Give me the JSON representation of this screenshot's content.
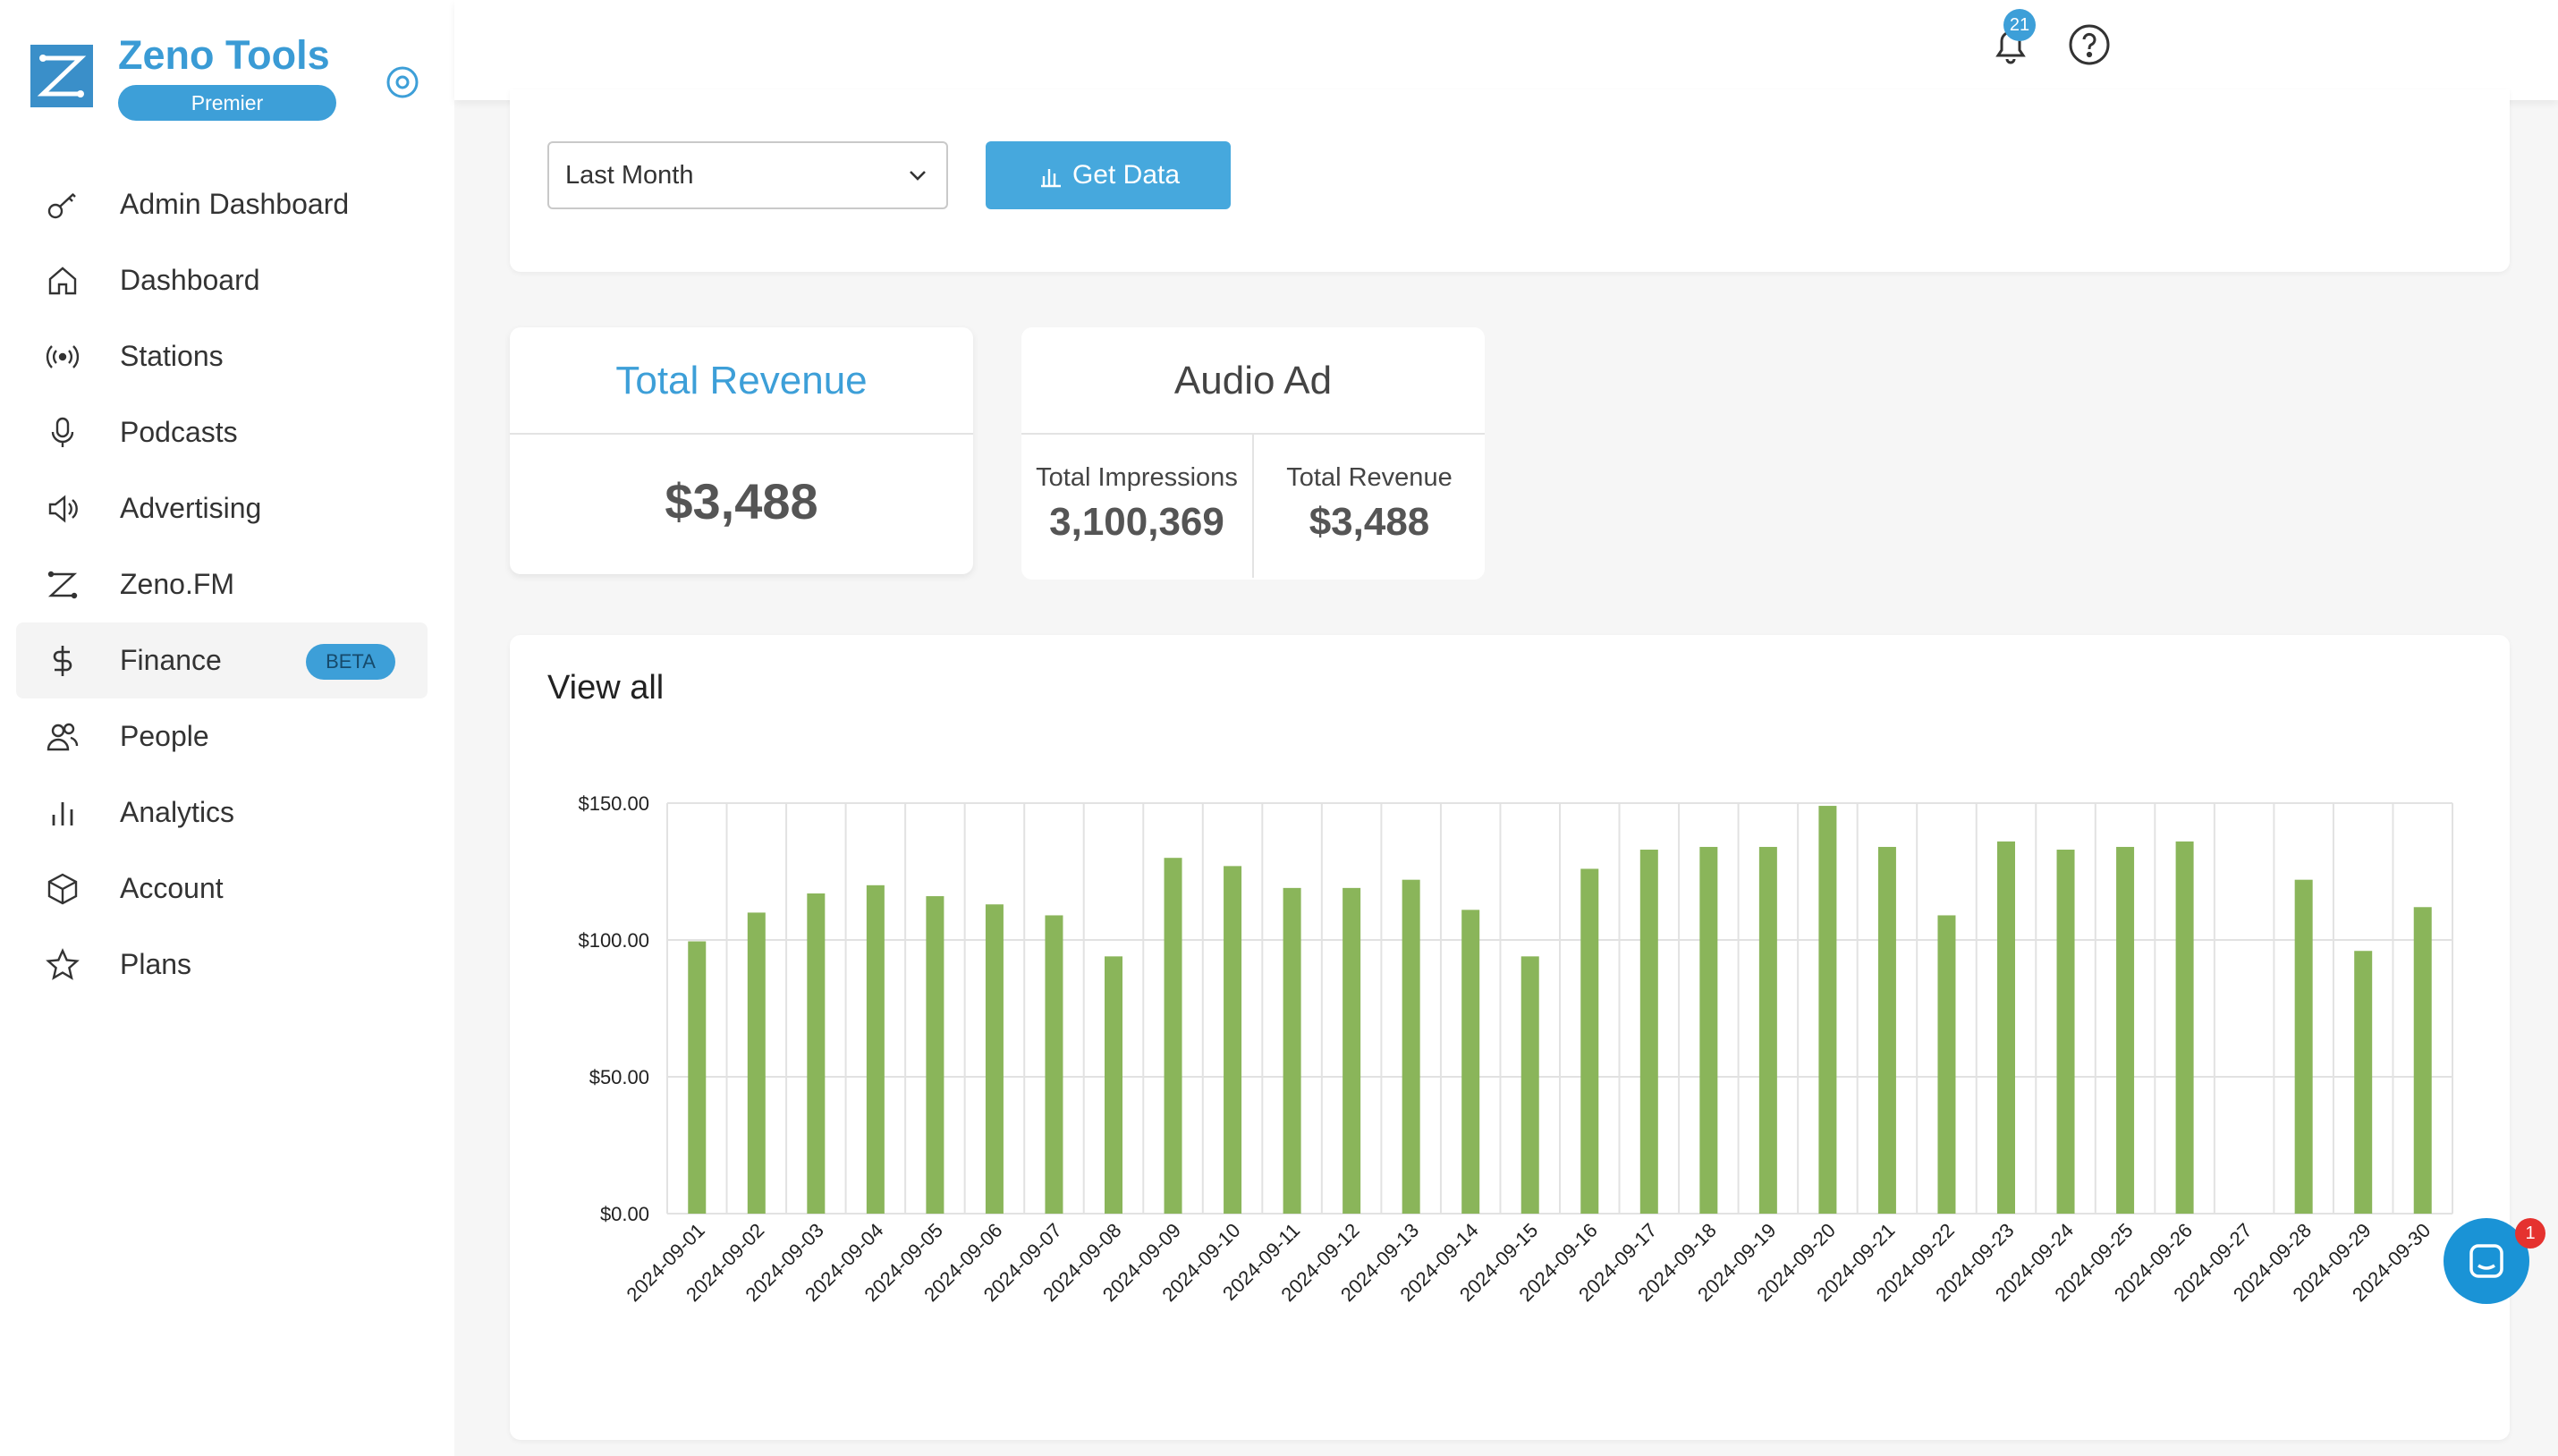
{
  "brand": {
    "name": "Zeno Tools",
    "plan": "Premier"
  },
  "sidebar": {
    "items": [
      {
        "label": "Admin Dashboard",
        "icon": "key-icon"
      },
      {
        "label": "Dashboard",
        "icon": "home-icon"
      },
      {
        "label": "Stations",
        "icon": "broadcast-icon"
      },
      {
        "label": "Podcasts",
        "icon": "microphone-icon"
      },
      {
        "label": "Advertising",
        "icon": "speaker-icon"
      },
      {
        "label": "Zeno.FM",
        "icon": "zeno-icon"
      },
      {
        "label": "Finance",
        "icon": "dollar-icon",
        "badge": "BETA",
        "active": true
      },
      {
        "label": "People",
        "icon": "people-icon"
      },
      {
        "label": "Analytics",
        "icon": "bar-chart-icon"
      },
      {
        "label": "Account",
        "icon": "box-icon"
      },
      {
        "label": "Plans",
        "icon": "star-icon"
      }
    ]
  },
  "topbar": {
    "notification_count": "21"
  },
  "filter": {
    "range_selected": "Last Month",
    "get_data_label": "Get Data"
  },
  "total_revenue": {
    "title": "Total Revenue",
    "value": "$3,488"
  },
  "audio_ad": {
    "title": "Audio Ad",
    "impressions_label": "Total Impressions",
    "impressions_value": "3,100,369",
    "revenue_label": "Total Revenue",
    "revenue_value": "$3,488"
  },
  "chart_section": {
    "title": "View all"
  },
  "chat": {
    "badge": "1"
  },
  "colors": {
    "accent": "#3d9fd8",
    "bar": "#8ab55a"
  },
  "chart_data": {
    "type": "bar",
    "title": "",
    "xlabel": "",
    "ylabel": "",
    "ylim": [
      0,
      150
    ],
    "yticks": [
      "$0.00",
      "$50.00",
      "$100.00",
      "$150.00"
    ],
    "ytick_values": [
      0,
      50,
      100,
      150
    ],
    "grid": true,
    "categories": [
      "2024-09-01",
      "2024-09-02",
      "2024-09-03",
      "2024-09-04",
      "2024-09-05",
      "2024-09-06",
      "2024-09-07",
      "2024-09-08",
      "2024-09-09",
      "2024-09-10",
      "2024-09-11",
      "2024-09-12",
      "2024-09-13",
      "2024-09-14",
      "2024-09-15",
      "2024-09-16",
      "2024-09-17",
      "2024-09-18",
      "2024-09-19",
      "2024-09-20",
      "2024-09-21",
      "2024-09-22",
      "2024-09-23",
      "2024-09-24",
      "2024-09-25",
      "2024-09-26",
      "2024-09-27",
      "2024-09-28",
      "2024-09-29",
      "2024-09-30"
    ],
    "values": [
      99.5,
      110,
      117,
      120,
      116,
      113,
      109,
      94,
      130,
      127,
      119,
      119,
      122,
      111,
      94,
      126,
      133,
      134,
      134,
      149,
      134,
      109,
      136,
      133,
      134,
      136,
      0,
      122,
      96,
      112
    ]
  }
}
